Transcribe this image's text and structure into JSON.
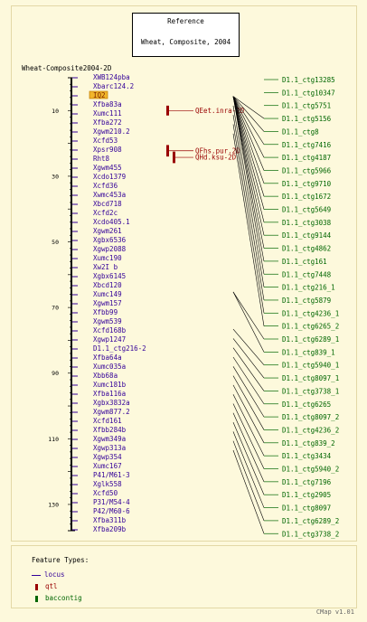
{
  "reference": {
    "title": "Reference",
    "subtitle": "Wheat, Composite, 2004"
  },
  "map_name": "Wheat-Composite2004-2D",
  "highlighted_marker": "IQ2",
  "scale": {
    "min": 0,
    "max": 138,
    "ticks": [
      10,
      30,
      50,
      70,
      90,
      110,
      130
    ]
  },
  "markers": [
    "XWB124pba",
    "Xbarc124.2",
    "IQ2",
    "Xfba83a",
    "Xumc111",
    "Xfba272",
    "Xgwm210.2",
    "Xcfd53",
    "Xpsr908",
    "Rht8",
    "Xgwm455",
    "Xcdo1379",
    "Xcfd36",
    "Xwmc453a",
    "Xbcd718",
    "Xcfd2c",
    "Xcdo405.1",
    "Xgwm261",
    "Xgbx6536",
    "Xgwp2088",
    "Xumc190",
    "Xw2I b",
    "Xgbx6145",
    "Xbcd120",
    "Xumc149",
    "Xgwm157",
    "Xfbb99",
    "Xgwm539",
    "Xcfd168b",
    "Xgwp1247",
    "D1.1_ctg216-2",
    "Xfba64a",
    "Xumc035a",
    "Xbb68a",
    "Xumc181b",
    "Xfba116a",
    "Xgbx3832a",
    "Xgwm877.2",
    "Xcfd161",
    "Xfbb284b",
    "Xgwm349a",
    "Xgwp313a",
    "Xgwp354",
    "Xumc167",
    "P41/M61-3",
    "Xglk558",
    "Xcfd50",
    "P31/M54-4",
    "P42/M60-6",
    "Xfba311b",
    "Xfba209b"
  ],
  "qtls": [
    {
      "label": "QEet.inra-2D",
      "start": 8.5,
      "end": 11.5
    },
    {
      "label": "QFhs.pur.2D",
      "start": 20.5,
      "end": 24
    },
    {
      "label": "QHd.ksu-2D",
      "start": 22.5,
      "end": 26
    }
  ],
  "contigs": [
    "D1.1_ctg13285",
    "D1.1_ctg10347",
    "D1.1_ctg5751",
    "D1.1_ctg5156",
    "D1.1_ctg8",
    "D1.1_ctg7416",
    "D1.1_ctg4187",
    "D1.1_ctg5966",
    "D1.1_ctg9710",
    "D1.1_ctg1672",
    "D1.1_ctg5649",
    "D1.1_ctg3038",
    "D1.1_ctg9144",
    "D1.1_ctg4862",
    "D1.1_ctg161",
    "D1.1_ctg7448",
    "D1.1_ctg216_1",
    "D1.1_ctg5879",
    "D1.1_ctg4236_1",
    "D1.1_ctg6265_2",
    "D1.1_ctg6289_1",
    "D1.1_ctg839_1",
    "D1.1_ctg5940_1",
    "D1.1_ctg8097_1",
    "D1.1_ctg3738_1",
    "D1.1_ctg6265",
    "D1.1_ctg8097_2",
    "D1.1_ctg4236_2",
    "D1.1_ctg839_2",
    "D1.1_ctg3434",
    "D1.1_ctg5940_2",
    "D1.1_ctg7196",
    "D1.1_ctg2905",
    "D1.1_ctg8097",
    "D1.1_ctg6289_2",
    "D1.1_ctg3738_2"
  ],
  "links": [
    [
      2,
      3
    ],
    [
      2,
      4
    ],
    [
      2,
      5
    ],
    [
      2,
      6
    ],
    [
      2,
      7
    ],
    [
      2,
      8
    ],
    [
      2,
      9
    ],
    [
      2,
      10
    ],
    [
      2,
      11
    ],
    [
      2,
      12
    ],
    [
      2,
      13
    ],
    [
      2,
      14
    ],
    [
      2,
      15
    ],
    [
      3,
      16
    ],
    [
      4,
      17
    ],
    [
      5,
      18
    ],
    [
      6,
      19
    ],
    [
      23,
      20
    ],
    [
      23,
      21
    ],
    [
      27,
      22
    ],
    [
      28,
      23
    ],
    [
      29,
      24
    ],
    [
      30,
      25
    ],
    [
      31,
      26
    ],
    [
      32,
      27
    ],
    [
      33,
      28
    ],
    [
      34,
      29
    ],
    [
      35,
      30
    ],
    [
      36,
      31
    ],
    [
      37,
      32
    ],
    [
      38,
      33
    ],
    [
      39,
      34
    ],
    [
      40,
      35
    ]
  ],
  "legend": {
    "title": "Feature Types:",
    "items": [
      {
        "label": "locus",
        "color": "#330099"
      },
      {
        "label": "qtl",
        "color": "#990000"
      },
      {
        "label": "baccontig",
        "color": "#006600"
      }
    ]
  },
  "footer": "CMap v1.01",
  "colors": {
    "marker": "#330099",
    "qtl": "#990000",
    "contig": "#006600",
    "axis": "#000000",
    "link": "#000000",
    "highlight": "#f2b62b"
  }
}
